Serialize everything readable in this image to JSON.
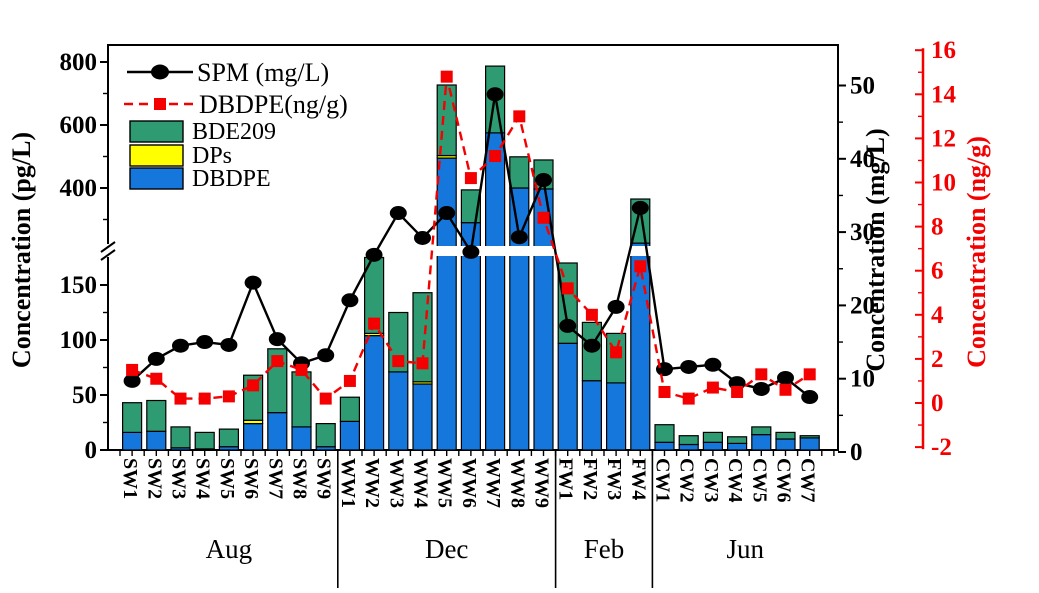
{
  "chart_data": {
    "type": "bar",
    "subtype": "stacked-bars-with-two-overlay-lines-broken-left-axis",
    "title": "",
    "categories": [
      "SW1",
      "SW2",
      "SW3",
      "SW4",
      "SW5",
      "SW6",
      "SW7",
      "SW8",
      "SW9",
      "WW1",
      "WW2",
      "WW3",
      "WW4",
      "WW5",
      "WW6",
      "WW7",
      "WW8",
      "WW9",
      "FW1",
      "FW2",
      "FW3",
      "FW4",
      "CW1",
      "CW2",
      "CW3",
      "CW4",
      "CW5",
      "CW6",
      "CW7"
    ],
    "groups": [
      {
        "label": "Aug",
        "count": 9
      },
      {
        "label": "Dec",
        "count": 9
      },
      {
        "label": "Feb",
        "count": 4
      },
      {
        "label": "Jun",
        "count": 7
      }
    ],
    "series": [
      {
        "name": "DBDPE",
        "role": "bar-stack-bottom",
        "unit": "pg/L",
        "color": "#1577DB",
        "values": [
          16,
          17,
          2,
          1,
          3,
          24,
          34,
          21,
          3,
          26,
          104,
          71,
          60,
          495,
          290,
          575,
          400,
          397,
          97,
          63,
          61,
          225,
          7,
          5,
          7,
          6,
          14,
          10,
          11
        ]
      },
      {
        "name": "DPs",
        "role": "bar-stack-middle",
        "unit": "pg/L",
        "color": "#FFFF00",
        "values": [
          0,
          0,
          0,
          0,
          0,
          3,
          0,
          0,
          0,
          0,
          2,
          0,
          2,
          8,
          0,
          0,
          0,
          0,
          0,
          0,
          0,
          0,
          0,
          0,
          0,
          0,
          0,
          0,
          0
        ]
      },
      {
        "name": "BDE209",
        "role": "bar-stack-top",
        "unit": "pg/L",
        "color": "#2E9B72",
        "values": [
          27,
          28,
          19,
          15,
          16,
          41,
          58,
          50,
          21,
          22,
          69,
          54,
          81,
          224,
          104,
          212,
          99,
          92,
          73,
          53,
          45,
          140,
          16,
          8,
          9,
          6,
          7,
          6,
          2
        ]
      },
      {
        "name": "SPM (mg/L)",
        "role": "line",
        "axis": "right-black",
        "color": "#000000",
        "marker": "circle",
        "dashed": false,
        "values": [
          9.7,
          12.7,
          14.5,
          15,
          14.6,
          23.1,
          15.4,
          12.1,
          13.2,
          20.7,
          26.9,
          32.6,
          29.2,
          32.6,
          27.3,
          48.8,
          29.3,
          37.1,
          17.2,
          14.5,
          19.8,
          33.3,
          11.3,
          11.6,
          11.9,
          9.4,
          8.6,
          10.1,
          7.5
        ]
      },
      {
        "name": "DBDPE(ng/g)",
        "role": "line",
        "axis": "right-red",
        "color": "#F40000",
        "marker": "square",
        "dashed": true,
        "values": [
          1.5,
          1.1,
          0.2,
          0.2,
          0.3,
          0.8,
          1.9,
          1.5,
          0.2,
          1.0,
          3.6,
          1.9,
          1.8,
          14.8,
          10.2,
          11.2,
          13.0,
          8.4,
          5.2,
          4.0,
          2.3,
          6.2,
          0.5,
          0.2,
          0.7,
          0.5,
          1.3,
          0.6,
          1.3
        ]
      }
    ],
    "axes": {
      "left": {
        "label": "Concentration (pg/L)",
        "broken": true,
        "lower_ticks": [
          0,
          50,
          100,
          150
        ],
        "upper_ticks": [
          400,
          600,
          800
        ],
        "lower_range": [
          0,
          175
        ],
        "upper_range": [
          400,
          800
        ]
      },
      "right_black": {
        "label": "Concentration (mg/L)",
        "ticks": [
          0,
          10,
          20,
          30,
          40,
          50
        ],
        "range": [
          0,
          50
        ]
      },
      "right_red": {
        "label": "Concentration (ng/g)",
        "ticks": [
          -2,
          0,
          2,
          4,
          6,
          8,
          10,
          12,
          14,
          16
        ],
        "range": [
          -2,
          16
        ]
      }
    },
    "legend": {
      "line_entries": [
        {
          "label": "SPM (mg/L)",
          "color": "#000000",
          "marker": "circle",
          "dashed": false
        },
        {
          "label": "DBDPE(ng/g)",
          "color": "#F40000",
          "marker": "square",
          "dashed": true
        }
      ],
      "patch_entries": [
        {
          "label": "BDE209",
          "color": "#2E9B72"
        },
        {
          "label": "DPs",
          "color": "#FFFF00"
        },
        {
          "label": "DBDPE",
          "color": "#1577DB"
        }
      ]
    },
    "colors": {
      "frame": "#000000",
      "red_axis": "#F40000",
      "break_band": "#FFFFFF"
    }
  }
}
